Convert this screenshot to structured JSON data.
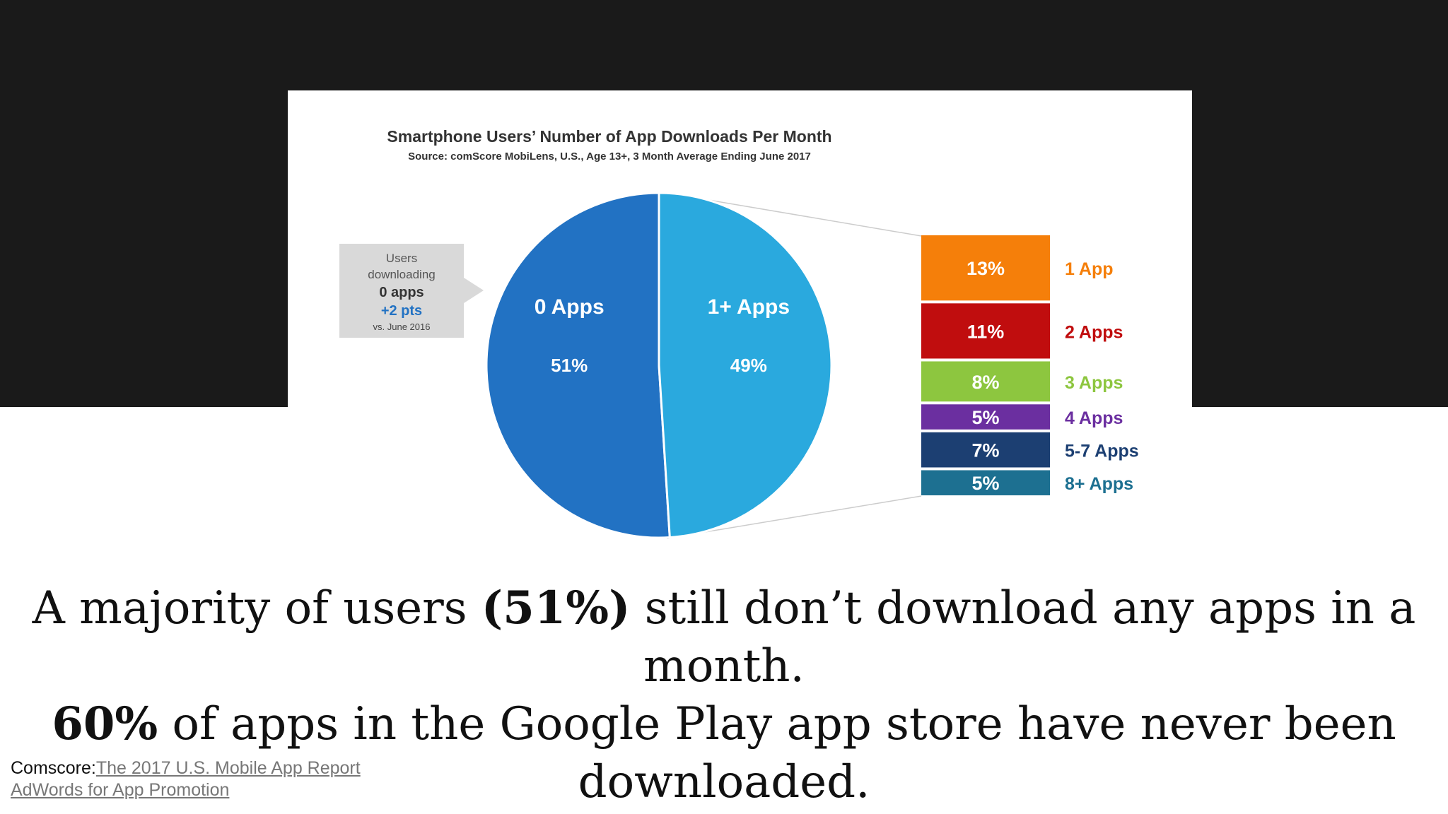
{
  "chart_data": {
    "type": "pie",
    "title": "Smartphone Users’ Number of App Downloads Per Month",
    "subtitle": "Source: comScore MobiLens, U.S., Age 13+, 3 Month Average Ending June 2017",
    "slices": [
      {
        "label": "0 Apps",
        "value": 51,
        "value_label": "51%",
        "color": "#2272c3"
      },
      {
        "label": "1+ Apps",
        "value": 49,
        "value_label": "49%",
        "color": "#2aa9de"
      }
    ],
    "breakdown": {
      "type": "stacked-bar",
      "parent": "1+ Apps",
      "items": [
        {
          "label": "1 App",
          "value": 13,
          "value_label": "13%",
          "color": "#f57f0a"
        },
        {
          "label": "2 Apps",
          "value": 11,
          "value_label": "11%",
          "color": "#c00d0e"
        },
        {
          "label": "3 Apps",
          "value": 8,
          "value_label": "8%",
          "color": "#8dc63f"
        },
        {
          "label": "4 Apps",
          "value": 5,
          "value_label": "5%",
          "color": "#6b2fa0"
        },
        {
          "label": "5-7 Apps",
          "value": 7,
          "value_label": "7%",
          "color": "#1c3f72"
        },
        {
          "label": "8+ Apps",
          "value": 5,
          "value_label": "5%",
          "color": "#1d7091"
        }
      ]
    },
    "callout": {
      "line1": "Users",
      "line2": "downloading",
      "line3": "0 apps",
      "line4": "+2 pts",
      "line5": "vs. June 2016"
    }
  },
  "caption": {
    "line1_a": "A majority of users ",
    "line1_b": "(51%)",
    "line1_c": " still don’t download any apps in a month.",
    "line2_a": "60%",
    "line2_b": " of apps in the Google Play app store have never been",
    "line3": "downloaded."
  },
  "sources": {
    "label1": "Comscore:",
    "link1": "The 2017 U.S. Mobile App Report",
    "link2": "AdWords for App Promotion"
  },
  "colors": {
    "callout_bg": "#d9d9d9",
    "highlight_blue": "#2272c3",
    "top_band": "#1a1a1a"
  }
}
